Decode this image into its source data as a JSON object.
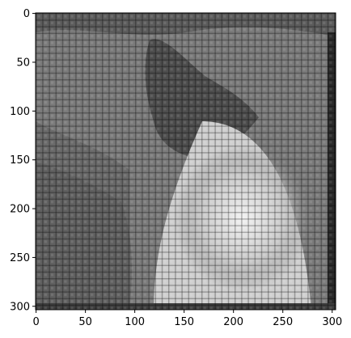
{
  "figure": {
    "type": "image-plot",
    "x_ticks": [
      "0",
      "50",
      "100",
      "150",
      "200",
      "250",
      "300"
    ],
    "y_ticks": [
      "0",
      "50",
      "100",
      "150",
      "200",
      "250",
      "300"
    ],
    "x_range": [
      0,
      304
    ],
    "y_range": [
      0,
      304
    ],
    "y_axis_inverted": true,
    "colormap": "gray",
    "image_description_icon": "grayscale-photo-with-grid-artifact"
  }
}
